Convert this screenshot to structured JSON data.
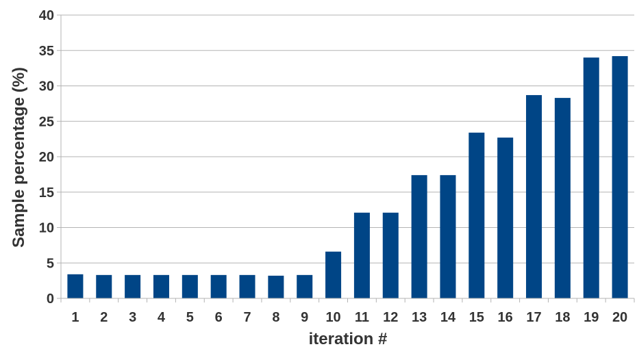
{
  "chart_data": {
    "type": "bar",
    "title": "",
    "xlabel": "iteration #",
    "ylabel": "Sample percentage (%)",
    "categories": [
      "1",
      "2",
      "3",
      "4",
      "5",
      "6",
      "7",
      "8",
      "9",
      "10",
      "11",
      "12",
      "13",
      "14",
      "15",
      "16",
      "17",
      "18",
      "19",
      "20"
    ],
    "values": [
      3.4,
      3.3,
      3.3,
      3.3,
      3.3,
      3.3,
      3.3,
      3.2,
      3.3,
      6.6,
      12.1,
      12.1,
      17.4,
      17.4,
      23.4,
      22.7,
      28.7,
      28.3,
      34.0,
      34.2
    ],
    "ylim": [
      0,
      40
    ],
    "yticks": [
      0,
      5,
      10,
      15,
      20,
      25,
      30,
      35,
      40
    ],
    "grid": true,
    "legend": "none",
    "bar_color": "#004586"
  }
}
